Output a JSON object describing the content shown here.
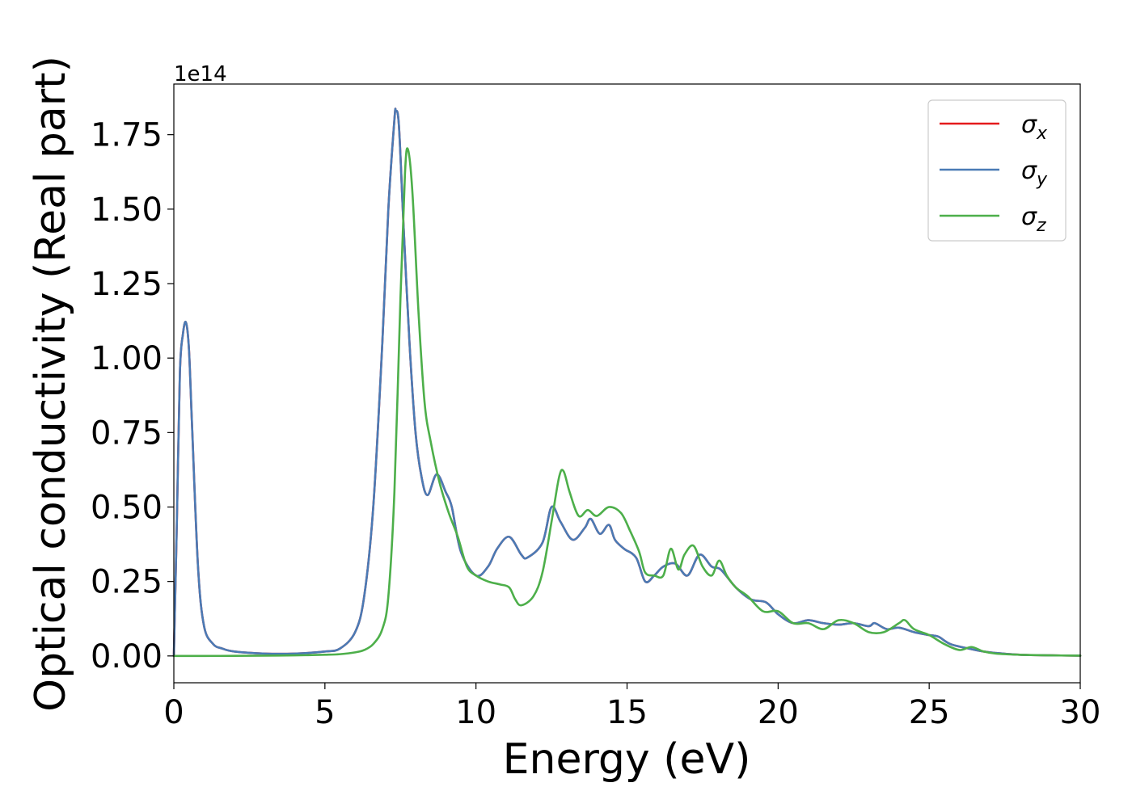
{
  "chart_data": {
    "type": "line",
    "title": "",
    "xlabel": "Energy (eV)",
    "ylabel": "Optical conductivity (Real part)",
    "y_offset_label": "1e14",
    "xlim": [
      0,
      30
    ],
    "ylim": [
      -0.09,
      1.92
    ],
    "x_ticks": [
      0,
      5,
      10,
      15,
      20,
      25,
      30
    ],
    "x_tick_labels": [
      "0",
      "5",
      "10",
      "15",
      "20",
      "25",
      "30"
    ],
    "y_ticks": [
      0,
      0.25,
      0.5,
      0.75,
      1.0,
      1.25,
      1.5,
      1.75
    ],
    "y_tick_labels": [
      "0.00",
      "0.25",
      "0.50",
      "0.75",
      "1.00",
      "1.25",
      "1.50",
      "1.75"
    ],
    "grid": false,
    "legend_position": "top-right",
    "series": [
      {
        "name": "σ",
        "subscript": "x",
        "color": "#e41a1c",
        "x": [
          0,
          0.1,
          0.2,
          0.3,
          0.4,
          0.5,
          0.6,
          0.8,
          1.0,
          1.3,
          1.6,
          2.0,
          3.0,
          4.0,
          5.0,
          5.5,
          6.0,
          6.3,
          6.6,
          6.9,
          7.1,
          7.3,
          7.35,
          7.45,
          7.6,
          7.8,
          8.0,
          8.2,
          8.4,
          8.7,
          9.0,
          9.2,
          9.5,
          10.0,
          10.4,
          10.7,
          11.1,
          11.5,
          11.7,
          12.2,
          12.5,
          12.8,
          13.2,
          13.6,
          13.8,
          14.1,
          14.4,
          14.6,
          14.9,
          15.3,
          15.6,
          15.9,
          16.2,
          16.6,
          17.0,
          17.4,
          17.8,
          18.1,
          18.6,
          19.1,
          19.6,
          20.0,
          20.5,
          21.0,
          21.5,
          22.0,
          22.5,
          23.0,
          23.2,
          23.6,
          24.0,
          24.5,
          25.0,
          25.3,
          25.7,
          26.3,
          26.8,
          27.2,
          28.0,
          29.0,
          30.0
        ],
        "y": [
          0.0,
          0.45,
          0.95,
          1.08,
          1.12,
          1.03,
          0.78,
          0.3,
          0.1,
          0.04,
          0.025,
          0.015,
          0.008,
          0.008,
          0.015,
          0.025,
          0.08,
          0.2,
          0.5,
          1.05,
          1.5,
          1.8,
          1.83,
          1.78,
          1.45,
          1.05,
          0.75,
          0.6,
          0.54,
          0.61,
          0.55,
          0.5,
          0.35,
          0.27,
          0.3,
          0.36,
          0.4,
          0.34,
          0.33,
          0.38,
          0.5,
          0.45,
          0.39,
          0.43,
          0.46,
          0.41,
          0.44,
          0.39,
          0.36,
          0.33,
          0.25,
          0.27,
          0.3,
          0.31,
          0.27,
          0.34,
          0.3,
          0.29,
          0.23,
          0.19,
          0.18,
          0.14,
          0.11,
          0.12,
          0.11,
          0.105,
          0.11,
          0.1,
          0.11,
          0.09,
          0.095,
          0.08,
          0.07,
          0.065,
          0.04,
          0.025,
          0.015,
          0.01,
          0.004,
          0.002,
          0.001
        ]
      },
      {
        "name": "σ",
        "subscript": "y",
        "color": "#4a7bb5",
        "x": [
          0,
          0.1,
          0.2,
          0.3,
          0.4,
          0.5,
          0.6,
          0.8,
          1.0,
          1.3,
          1.6,
          2.0,
          3.0,
          4.0,
          5.0,
          5.5,
          6.0,
          6.3,
          6.6,
          6.9,
          7.1,
          7.3,
          7.35,
          7.45,
          7.6,
          7.8,
          8.0,
          8.2,
          8.4,
          8.7,
          9.0,
          9.2,
          9.5,
          10.0,
          10.4,
          10.7,
          11.1,
          11.5,
          11.7,
          12.2,
          12.5,
          12.8,
          13.2,
          13.6,
          13.8,
          14.1,
          14.4,
          14.6,
          14.9,
          15.3,
          15.6,
          15.9,
          16.2,
          16.6,
          17.0,
          17.4,
          17.8,
          18.1,
          18.6,
          19.1,
          19.6,
          20.0,
          20.5,
          21.0,
          21.5,
          22.0,
          22.5,
          23.0,
          23.2,
          23.6,
          24.0,
          24.5,
          25.0,
          25.3,
          25.7,
          26.3,
          26.8,
          27.2,
          28.0,
          29.0,
          30.0
        ],
        "y": [
          0.0,
          0.45,
          0.95,
          1.08,
          1.12,
          1.03,
          0.78,
          0.3,
          0.1,
          0.04,
          0.025,
          0.015,
          0.008,
          0.008,
          0.015,
          0.025,
          0.08,
          0.2,
          0.5,
          1.05,
          1.5,
          1.8,
          1.83,
          1.78,
          1.45,
          1.05,
          0.75,
          0.6,
          0.54,
          0.61,
          0.55,
          0.5,
          0.35,
          0.27,
          0.3,
          0.36,
          0.4,
          0.34,
          0.33,
          0.38,
          0.5,
          0.45,
          0.39,
          0.43,
          0.46,
          0.41,
          0.44,
          0.39,
          0.36,
          0.33,
          0.25,
          0.27,
          0.3,
          0.31,
          0.27,
          0.34,
          0.3,
          0.29,
          0.23,
          0.19,
          0.18,
          0.14,
          0.11,
          0.12,
          0.11,
          0.105,
          0.11,
          0.1,
          0.11,
          0.09,
          0.095,
          0.08,
          0.07,
          0.065,
          0.04,
          0.025,
          0.015,
          0.01,
          0.004,
          0.002,
          0.001
        ]
      },
      {
        "name": "σ",
        "subscript": "z",
        "color": "#4daf4a",
        "x": [
          0,
          1,
          2,
          3,
          4,
          5,
          5.5,
          6.0,
          6.3,
          6.6,
          6.9,
          7.1,
          7.3,
          7.5,
          7.65,
          7.75,
          7.9,
          8.1,
          8.3,
          8.5,
          8.8,
          9.1,
          9.4,
          9.7,
          10.0,
          10.4,
          10.8,
          11.1,
          11.3,
          11.5,
          11.9,
          12.2,
          12.5,
          12.75,
          12.9,
          13.1,
          13.4,
          13.7,
          14.0,
          14.4,
          14.8,
          15.1,
          15.4,
          15.6,
          15.9,
          16.2,
          16.45,
          16.7,
          16.9,
          17.2,
          17.5,
          17.8,
          18.05,
          18.3,
          18.6,
          19.0,
          19.5,
          20.0,
          20.5,
          21.0,
          21.5,
          22.0,
          22.5,
          23.0,
          23.5,
          24.0,
          24.2,
          24.5,
          25.0,
          25.5,
          26.0,
          26.4,
          26.8,
          27.2,
          28.0,
          29.0,
          30.0
        ],
        "y": [
          0.0,
          0.0,
          0.0005,
          0.001,
          0.002,
          0.004,
          0.006,
          0.012,
          0.02,
          0.04,
          0.09,
          0.2,
          0.55,
          1.2,
          1.62,
          1.7,
          1.55,
          1.15,
          0.85,
          0.72,
          0.58,
          0.48,
          0.4,
          0.3,
          0.27,
          0.25,
          0.24,
          0.23,
          0.19,
          0.17,
          0.2,
          0.28,
          0.45,
          0.6,
          0.62,
          0.55,
          0.47,
          0.49,
          0.47,
          0.5,
          0.48,
          0.42,
          0.35,
          0.28,
          0.27,
          0.27,
          0.36,
          0.29,
          0.34,
          0.37,
          0.3,
          0.27,
          0.32,
          0.27,
          0.23,
          0.2,
          0.15,
          0.15,
          0.11,
          0.11,
          0.09,
          0.12,
          0.11,
          0.08,
          0.08,
          0.11,
          0.12,
          0.09,
          0.07,
          0.04,
          0.02,
          0.03,
          0.015,
          0.008,
          0.004,
          0.002,
          0.001
        ]
      }
    ]
  }
}
